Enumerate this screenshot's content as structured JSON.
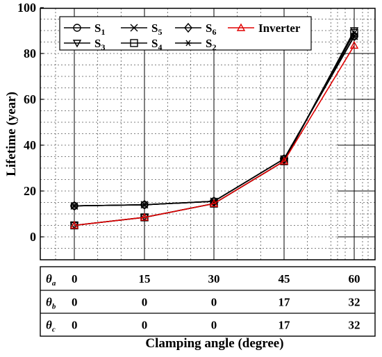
{
  "chart_data": {
    "type": "line",
    "xlabel": "Clamping angle (degree)",
    "ylabel": "Lifetime (year)",
    "x": [
      0,
      15,
      30,
      45,
      60
    ],
    "ylim": [
      -10,
      100
    ],
    "yticks": [
      0,
      20,
      40,
      60,
      80,
      100
    ],
    "grid": true,
    "legend_position": "top",
    "series": [
      {
        "name": "S",
        "sub": "1",
        "marker": "circle",
        "color": "#000000",
        "values": [
          13.5,
          14,
          15.5,
          34,
          87.5
        ]
      },
      {
        "name": "S",
        "sub": "5",
        "marker": "x",
        "color": "#000000",
        "values": [
          13.5,
          14,
          15.5,
          34,
          87.5
        ]
      },
      {
        "name": "S",
        "sub": "6",
        "marker": "diamond",
        "color": "#000000",
        "values": [
          13.5,
          14,
          15.5,
          34,
          87.5
        ]
      },
      {
        "name": "Inverter",
        "sub": "",
        "marker": "triangle-up",
        "color": "#e00000",
        "values": [
          5,
          8.5,
          14.5,
          33,
          83.5
        ]
      },
      {
        "name": "S",
        "sub": "3",
        "marker": "triangle-down",
        "color": "#000000",
        "values": [
          5,
          8.5,
          14.5,
          33,
          90
        ]
      },
      {
        "name": "S",
        "sub": "4",
        "marker": "square",
        "color": "#000000",
        "values": [
          5,
          8.5,
          14.5,
          33,
          89
        ]
      },
      {
        "name": "S",
        "sub": "2",
        "marker": "asterisk",
        "color": "#000000",
        "values": [
          13.5,
          14,
          15.5,
          34,
          87.5
        ]
      }
    ],
    "table": {
      "rows": [
        {
          "label": "θ",
          "sub": "a",
          "values": [
            "0",
            "15",
            "30",
            "45",
            "60"
          ]
        },
        {
          "label": "θ",
          "sub": "b",
          "values": [
            "0",
            "0",
            "0",
            "17",
            "32"
          ]
        },
        {
          "label": "θ",
          "sub": "c",
          "values": [
            "0",
            "0",
            "0",
            "17",
            "32"
          ]
        }
      ]
    }
  }
}
